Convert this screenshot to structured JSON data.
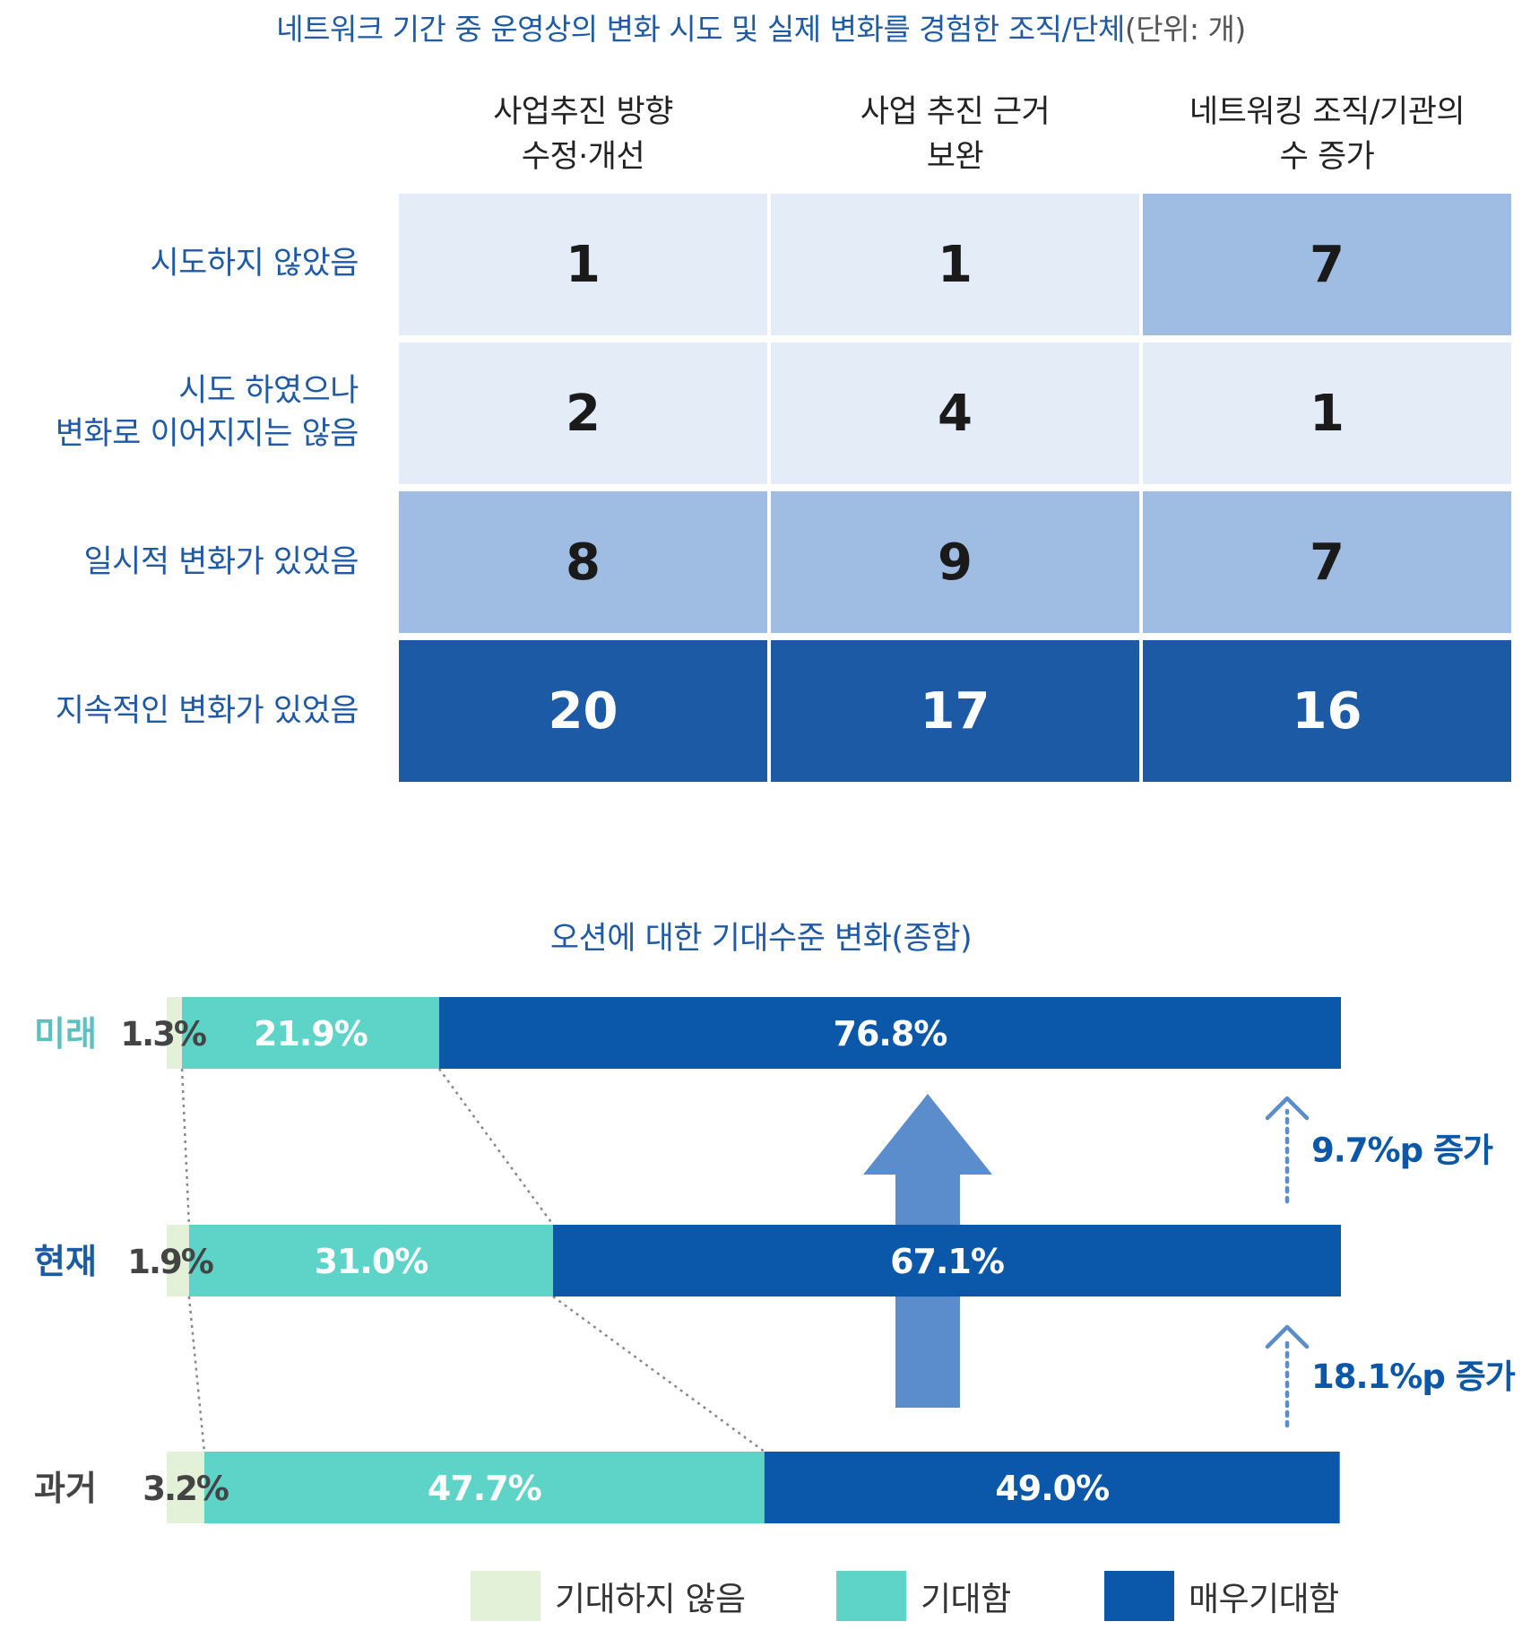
{
  "table": {
    "title": "네트워크 기간 중 운영상의 변화 시도 및 실제 변화를 경험한 조직/단체",
    "unit": "(단위: 개)",
    "columns": [
      [
        "사업추진 방향",
        "수정·개선"
      ],
      [
        "사업 추진 근거",
        "보완"
      ],
      [
        "네트워킹 조직/기관의",
        "수 증가"
      ]
    ],
    "rows": [
      {
        "label": [
          "시도하지 않았음"
        ],
        "values": [
          "1",
          "1",
          "7"
        ],
        "levels": [
          "light",
          "light",
          "mid"
        ]
      },
      {
        "label": [
          "시도 하였으나",
          "변화로 이어지지는 않음"
        ],
        "values": [
          "2",
          "4",
          "1"
        ],
        "levels": [
          "light",
          "light",
          "light"
        ]
      },
      {
        "label": [
          "일시적 변화가 있었음"
        ],
        "values": [
          "8",
          "9",
          "7"
        ],
        "levels": [
          "mid",
          "mid",
          "mid"
        ]
      },
      {
        "label": [
          "지속적인 변화가 있었음"
        ],
        "values": [
          "20",
          "17",
          "16"
        ],
        "levels": [
          "dark",
          "dark",
          "dark"
        ]
      }
    ],
    "colors": {
      "light": "#e3ecf7",
      "mid": "#9fbde2",
      "dark": "#1d5aa5"
    }
  },
  "chart_data": {
    "type": "bar",
    "orientation": "horizontal",
    "stacked": true,
    "title": "오션에 대한 기대수준 변화(종합)",
    "xlim": [
      0,
      100
    ],
    "categories": [
      "미래",
      "현재",
      "과거"
    ],
    "category_colors": [
      "#5bc0be",
      "#1d5aa5",
      "#444444"
    ],
    "series": [
      {
        "name": "기대하지 않음",
        "color": "#e3f1d8",
        "values": [
          1.3,
          1.9,
          3.2
        ],
        "labels": [
          "1.3%",
          "1.9%",
          "3.2%"
        ]
      },
      {
        "name": "기대함",
        "color": "#5ed3c7",
        "values": [
          21.9,
          31.0,
          47.7
        ],
        "labels": [
          "21.9%",
          "31.0%",
          "47.7%"
        ]
      },
      {
        "name": "매우기대함",
        "color": "#0b58aa",
        "values": [
          76.8,
          67.1,
          49.0
        ],
        "labels": [
          "76.8%",
          "67.1%",
          "49.0%"
        ]
      }
    ],
    "annotations": [
      {
        "text": "9.7%p 증가",
        "between": [
          "현재",
          "미래"
        ]
      },
      {
        "text": "18.1%p 증가",
        "between": [
          "과거",
          "현재"
        ]
      }
    ],
    "arrow_color": "#5b8ccc",
    "legend": "bottom"
  }
}
